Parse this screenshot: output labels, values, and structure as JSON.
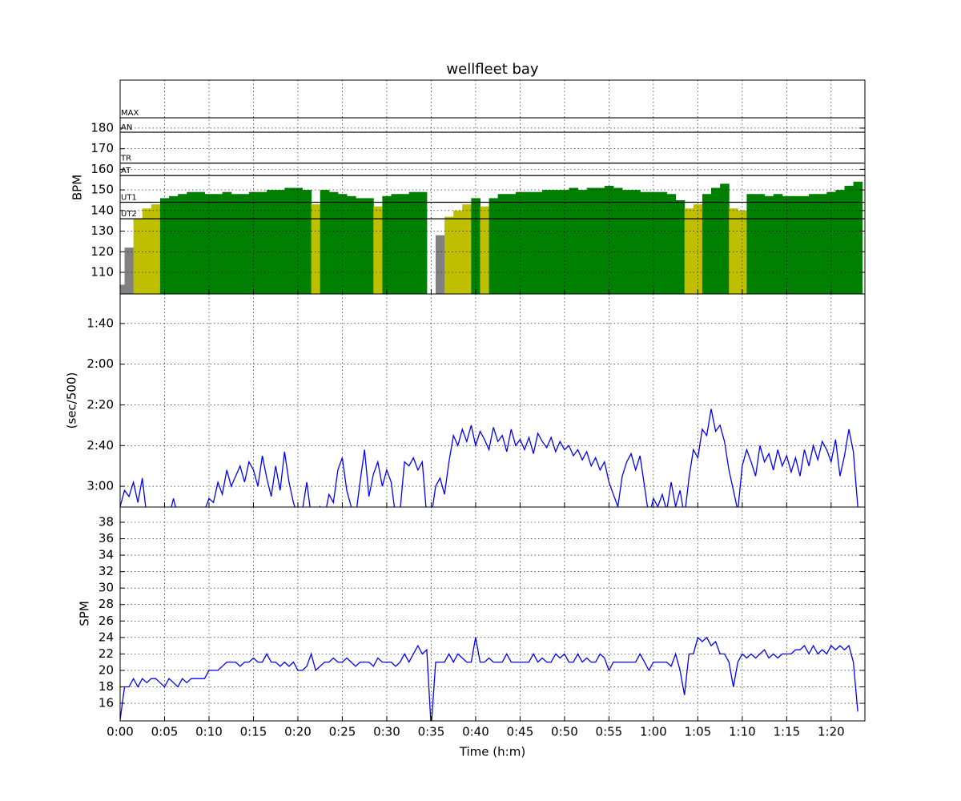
{
  "chart_data": [
    {
      "type": "zone-area",
      "title": "wellfleet bay",
      "ylabel": "BPM",
      "x": [
        0,
        1,
        2,
        3,
        4,
        5,
        6,
        7,
        8,
        9,
        10,
        11,
        12,
        13,
        14,
        15,
        16,
        17,
        18,
        19,
        20,
        21,
        22,
        23,
        24,
        25,
        26,
        27,
        28,
        29,
        30,
        31,
        32,
        33,
        34,
        35,
        36,
        37,
        38,
        39,
        40,
        41,
        42,
        43,
        44,
        45,
        46,
        47,
        48,
        49,
        50,
        51,
        52,
        53,
        54,
        55,
        56,
        57,
        58,
        59,
        60,
        61,
        62,
        63,
        64,
        65,
        66,
        67,
        68,
        69,
        70,
        71,
        72,
        73,
        74,
        75,
        76,
        77,
        78,
        79,
        80,
        81,
        82,
        83
      ],
      "values": [
        104,
        122,
        136,
        141,
        143,
        146,
        147,
        148,
        149,
        149,
        148,
        148,
        149,
        148,
        148,
        149,
        149,
        150,
        150,
        151,
        151,
        150,
        143,
        150,
        149,
        148,
        147,
        146,
        146,
        142,
        147,
        148,
        148,
        149,
        149,
        null,
        128,
        137,
        140,
        143,
        146,
        142,
        146,
        148,
        148,
        149,
        149,
        149,
        150,
        150,
        150,
        151,
        150,
        151,
        151,
        152,
        151,
        150,
        150,
        149,
        149,
        149,
        148,
        145,
        141,
        143,
        148,
        151,
        153,
        141,
        140,
        148,
        148,
        147,
        148,
        147,
        147,
        147,
        148,
        148,
        149,
        150,
        152,
        154
      ],
      "zones": [
        {
          "label": "MAX",
          "value": 185
        },
        {
          "label": "AN",
          "value": 178
        },
        {
          "label": "TR",
          "value": 163
        },
        {
          "label": "AT",
          "value": 157
        },
        {
          "label": "UT1",
          "value": 144,
          "color": "#008000"
        },
        {
          "label": "UT2",
          "value": 136,
          "color": "#bfbf00"
        }
      ],
      "below_color": "#808080",
      "ylim": [
        99.5,
        203.3
      ],
      "yticks": [
        110,
        120,
        130,
        140,
        150,
        160,
        170,
        180
      ],
      "grid": true
    },
    {
      "type": "line",
      "ylabel": "(sec/500)",
      "color": "#0000ff",
      "x": [
        0,
        0.5,
        1,
        1.5,
        2,
        2.5,
        3,
        3.5,
        4,
        4.5,
        5,
        5.5,
        6,
        6.5,
        7,
        7.5,
        8,
        8.5,
        9,
        9.5,
        10,
        10.5,
        11,
        11.5,
        12,
        12.5,
        13,
        13.5,
        14,
        14.5,
        15,
        15.5,
        16,
        16.5,
        17,
        17.5,
        18,
        18.5,
        19,
        19.5,
        20,
        20.5,
        21,
        21.5,
        22,
        22.5,
        23,
        23.5,
        24,
        24.5,
        25,
        25.5,
        26,
        26.5,
        27,
        27.5,
        28,
        28.5,
        29,
        29.5,
        30,
        30.5,
        31,
        31.5,
        32,
        32.5,
        33,
        33.5,
        34,
        34.5,
        35,
        35.5,
        36,
        36.5,
        37,
        37.5,
        38,
        38.5,
        39,
        39.5,
        40,
        40.5,
        41,
        41.5,
        42,
        42.5,
        43,
        43.5,
        44,
        44.5,
        45,
        45.5,
        46,
        46.5,
        47,
        47.5,
        48,
        48.5,
        49,
        49.5,
        50,
        50.5,
        51,
        51.5,
        52,
        52.5,
        53,
        53.5,
        54,
        54.5,
        55,
        55.5,
        56,
        56.5,
        57,
        57.5,
        58,
        58.5,
        59,
        59.5,
        60,
        60.5,
        61,
        61.5,
        62,
        62.5,
        63,
        63.5,
        64,
        64.5,
        65,
        65.5,
        66,
        66.5,
        67,
        67.5,
        68,
        68.5,
        69,
        69.5,
        70,
        70.5,
        71,
        71.5,
        72,
        72.5,
        73,
        73.5,
        74,
        74.5,
        75,
        75.5,
        76,
        76.5,
        77,
        77.5,
        78,
        78.5,
        79,
        79.5,
        80,
        80.5,
        81,
        81.5,
        82,
        82.5,
        83
      ],
      "values": [
        190,
        182,
        185,
        178,
        188,
        176,
        195,
        195,
        195,
        195,
        195,
        195,
        186,
        195,
        195,
        195,
        195,
        195,
        195,
        192,
        186,
        188,
        178,
        184,
        172,
        180,
        175,
        170,
        178,
        168,
        172,
        180,
        165,
        176,
        185,
        170,
        182,
        163,
        178,
        188,
        195,
        192,
        178,
        195,
        195,
        190,
        195,
        184,
        188,
        172,
        166,
        182,
        190,
        195,
        178,
        162,
        185,
        174,
        168,
        180,
        172,
        178,
        195,
        192,
        168,
        170,
        166,
        172,
        168,
        195,
        195,
        180,
        176,
        184,
        168,
        155,
        160,
        152,
        158,
        150,
        160,
        153,
        157,
        162,
        151,
        158,
        155,
        163,
        152,
        160,
        157,
        162,
        156,
        164,
        154,
        158,
        161,
        156,
        163,
        158,
        162,
        160,
        165,
        162,
        167,
        163,
        170,
        166,
        172,
        168,
        178,
        184,
        190,
        175,
        168,
        164,
        172,
        165,
        180,
        195,
        186,
        190,
        184,
        192,
        178,
        190,
        182,
        195,
        176,
        162,
        166,
        152,
        155,
        142,
        153,
        150,
        158,
        172,
        182,
        192,
        170,
        162,
        168,
        175,
        160,
        168,
        164,
        172,
        162,
        170,
        165,
        173,
        166,
        175,
        162,
        170,
        160,
        167,
        158,
        162,
        168,
        157,
        175,
        165,
        152,
        163,
        190
      ],
      "ylim": [
        190.2,
        85.5
      ],
      "yticks": [
        {
          "value": 100,
          "label": "1:40"
        },
        {
          "value": 120,
          "label": "2:00"
        },
        {
          "value": 140,
          "label": "2:20"
        },
        {
          "value": 160,
          "label": "2:40"
        },
        {
          "value": 180,
          "label": "3:00"
        }
      ],
      "grid": true
    },
    {
      "type": "line",
      "ylabel": "SPM",
      "xlabel": "Time (h:m)",
      "color": "#0000ff",
      "x": [
        0,
        0.5,
        1,
        1.5,
        2,
        2.5,
        3,
        3.5,
        4,
        4.5,
        5,
        5.5,
        6,
        6.5,
        7,
        7.5,
        8,
        8.5,
        9,
        9.5,
        10,
        10.5,
        11,
        11.5,
        12,
        12.5,
        13,
        13.5,
        14,
        14.5,
        15,
        15.5,
        16,
        16.5,
        17,
        17.5,
        18,
        18.5,
        19,
        19.5,
        20,
        20.5,
        21,
        21.5,
        22,
        22.5,
        23,
        23.5,
        24,
        24.5,
        25,
        25.5,
        26,
        26.5,
        27,
        27.5,
        28,
        28.5,
        29,
        29.5,
        30,
        30.5,
        31,
        31.5,
        32,
        32.5,
        33,
        33.5,
        34,
        34.5,
        35,
        35.5,
        36,
        36.5,
        37,
        37.5,
        38,
        38.5,
        39,
        39.5,
        40,
        40.5,
        41,
        41.5,
        42,
        42.5,
        43,
        43.5,
        44,
        44.5,
        45,
        45.5,
        46,
        46.5,
        47,
        47.5,
        48,
        48.5,
        49,
        49.5,
        50,
        50.5,
        51,
        51.5,
        52,
        52.5,
        53,
        53.5,
        54,
        54.5,
        55,
        55.5,
        56,
        56.5,
        57,
        57.5,
        58,
        58.5,
        59,
        59.5,
        60,
        60.5,
        61,
        61.5,
        62,
        62.5,
        63,
        63.5,
        64,
        64.5,
        65,
        65.5,
        66,
        66.5,
        67,
        67.5,
        68,
        68.5,
        69,
        69.5,
        70,
        70.5,
        71,
        71.5,
        72,
        72.5,
        73,
        73.5,
        74,
        74.5,
        75,
        75.5,
        76,
        76.5,
        77,
        77.5,
        78,
        78.5,
        79,
        79.5,
        80,
        80.5,
        81,
        81.5,
        82,
        82.5,
        83
      ],
      "values": [
        14,
        18,
        18,
        19,
        18,
        19,
        18.5,
        19,
        19,
        18.5,
        18,
        19,
        18.5,
        18,
        19,
        18.5,
        19,
        19,
        19,
        19,
        20,
        20,
        20,
        20.5,
        21,
        21,
        21,
        20.5,
        21,
        21,
        21.5,
        21,
        21,
        22,
        21,
        21,
        20.5,
        21,
        20.5,
        21,
        20,
        20,
        20.5,
        22,
        20,
        20.5,
        21,
        21,
        21.5,
        21,
        21,
        21.5,
        21,
        20.5,
        21,
        21,
        21,
        20.5,
        21.5,
        21,
        21,
        21,
        20.5,
        21,
        22,
        21,
        22,
        23,
        22,
        22.5,
        13,
        21,
        21,
        21,
        22,
        21,
        22,
        21.5,
        21,
        21,
        24,
        21,
        21,
        21.5,
        21,
        21,
        21,
        22,
        21,
        21,
        21,
        21,
        21,
        22,
        21,
        21.5,
        21,
        21,
        22,
        21.5,
        22,
        21,
        21,
        22,
        21,
        21.5,
        21,
        21,
        22,
        21.5,
        20,
        21,
        21,
        21,
        21,
        21,
        21,
        22,
        21,
        20,
        21,
        21,
        21,
        21,
        20.5,
        22,
        20,
        17,
        22,
        22,
        24,
        23.5,
        24,
        23,
        23.5,
        22,
        22,
        21,
        18,
        21,
        22,
        21.5,
        22,
        21.5,
        22,
        22.5,
        21.5,
        22,
        21.5,
        22,
        22,
        22,
        22.5,
        22.5,
        23,
        22,
        23,
        22,
        22.5,
        22,
        23,
        22.5,
        23,
        22.5,
        23,
        21,
        15
      ],
      "ylim": [
        13.86,
        39.85
      ],
      "yticks": [
        16,
        18,
        20,
        22,
        24,
        26,
        28,
        30,
        32,
        34,
        36,
        38
      ],
      "grid": true,
      "xlim": [
        0,
        83.8
      ],
      "xticks": [
        {
          "value": 0,
          "label": "0:00"
        },
        {
          "value": 5,
          "label": "0:05"
        },
        {
          "value": 10,
          "label": "0:10"
        },
        {
          "value": 15,
          "label": "0:15"
        },
        {
          "value": 20,
          "label": "0:20"
        },
        {
          "value": 25,
          "label": "0:25"
        },
        {
          "value": 30,
          "label": "0:30"
        },
        {
          "value": 35,
          "label": "0:35"
        },
        {
          "value": 40,
          "label": "0:40"
        },
        {
          "value": 45,
          "label": "0:45"
        },
        {
          "value": 50,
          "label": "0:50"
        },
        {
          "value": 55,
          "label": "0:55"
        },
        {
          "value": 60,
          "label": "1:00"
        },
        {
          "value": 65,
          "label": "1:05"
        },
        {
          "value": 70,
          "label": "1:10"
        },
        {
          "value": 75,
          "label": "1:15"
        },
        {
          "value": 80,
          "label": "1:20"
        }
      ]
    }
  ]
}
